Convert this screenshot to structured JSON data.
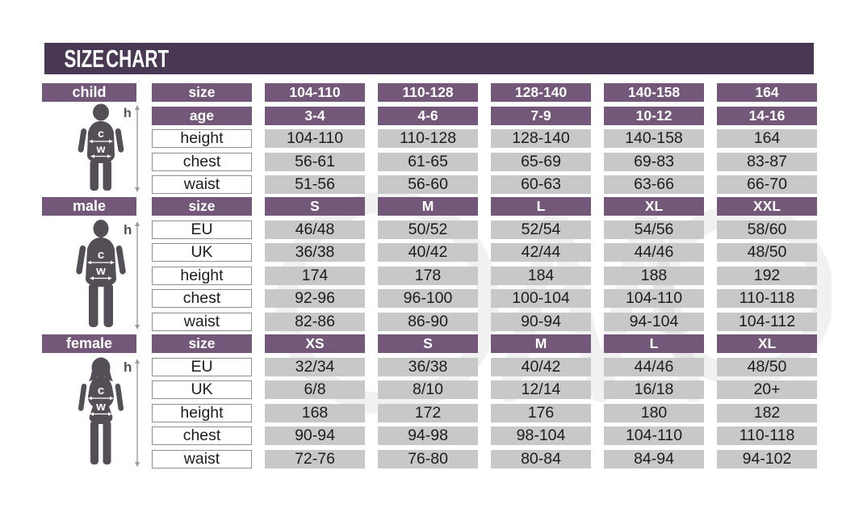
{
  "chart_data": {
    "type": "table",
    "title": "SIZE CHART",
    "tables": [
      {
        "label": "child",
        "rows": [
          {
            "label": "size",
            "style": "header",
            "values": [
              "104-110",
              "110-128",
              "128-140",
              "140-158",
              "164"
            ]
          },
          {
            "label": "age",
            "style": "header",
            "values": [
              "3-4",
              "4-6",
              "7-9",
              "10-12",
              "14-16"
            ]
          },
          {
            "label": "height",
            "style": "data",
            "values": [
              "104-110",
              "110-128",
              "128-140",
              "140-158",
              "164"
            ]
          },
          {
            "label": "chest",
            "style": "data",
            "values": [
              "56-61",
              "61-65",
              "65-69",
              "69-83",
              "83-87"
            ]
          },
          {
            "label": "waist",
            "style": "data",
            "values": [
              "51-56",
              "56-60",
              "60-63",
              "63-66",
              "66-70"
            ]
          }
        ]
      },
      {
        "label": "male",
        "rows": [
          {
            "label": "size",
            "style": "header",
            "values": [
              "S",
              "M",
              "L",
              "XL",
              "XXL"
            ]
          },
          {
            "label": "EU",
            "style": "data",
            "values": [
              "46/48",
              "50/52",
              "52/54",
              "54/56",
              "58/60"
            ]
          },
          {
            "label": "UK",
            "style": "data",
            "values": [
              "36/38",
              "40/42",
              "42/44",
              "44/46",
              "48/50"
            ]
          },
          {
            "label": "height",
            "style": "data",
            "values": [
              "174",
              "178",
              "184",
              "188",
              "192"
            ]
          },
          {
            "label": "chest",
            "style": "data",
            "values": [
              "92-96",
              "96-100",
              "100-104",
              "104-110",
              "110-118"
            ]
          },
          {
            "label": "waist",
            "style": "data",
            "values": [
              "82-86",
              "86-90",
              "90-94",
              "94-104",
              "104-112"
            ]
          }
        ]
      },
      {
        "label": "female",
        "rows": [
          {
            "label": "size",
            "style": "header",
            "values": [
              "XS",
              "S",
              "M",
              "L",
              "XL"
            ]
          },
          {
            "label": "EU",
            "style": "data",
            "values": [
              "32/34",
              "36/38",
              "40/42",
              "44/46",
              "48/50"
            ]
          },
          {
            "label": "UK",
            "style": "data",
            "values": [
              "6/8",
              "8/10",
              "12/14",
              "16/18",
              "20+"
            ]
          },
          {
            "label": "height",
            "style": "data",
            "values": [
              "168",
              "172",
              "176",
              "180",
              "182"
            ]
          },
          {
            "label": "chest",
            "style": "data",
            "values": [
              "90-94",
              "94-98",
              "98-104",
              "104-110",
              "110-118"
            ]
          },
          {
            "label": "waist",
            "style": "data",
            "values": [
              "72-76",
              "76-80",
              "80-84",
              "84-94",
              "94-102"
            ]
          }
        ]
      }
    ]
  },
  "measure_labels": {
    "height": "h",
    "chest": "c",
    "waist": "w"
  },
  "colors": {
    "title_bar": "#483853",
    "header_purple": "#745879",
    "cell_gray": "#c8c8c8",
    "silhouette": "#544e57",
    "text_dark": "#1d1d1d"
  }
}
